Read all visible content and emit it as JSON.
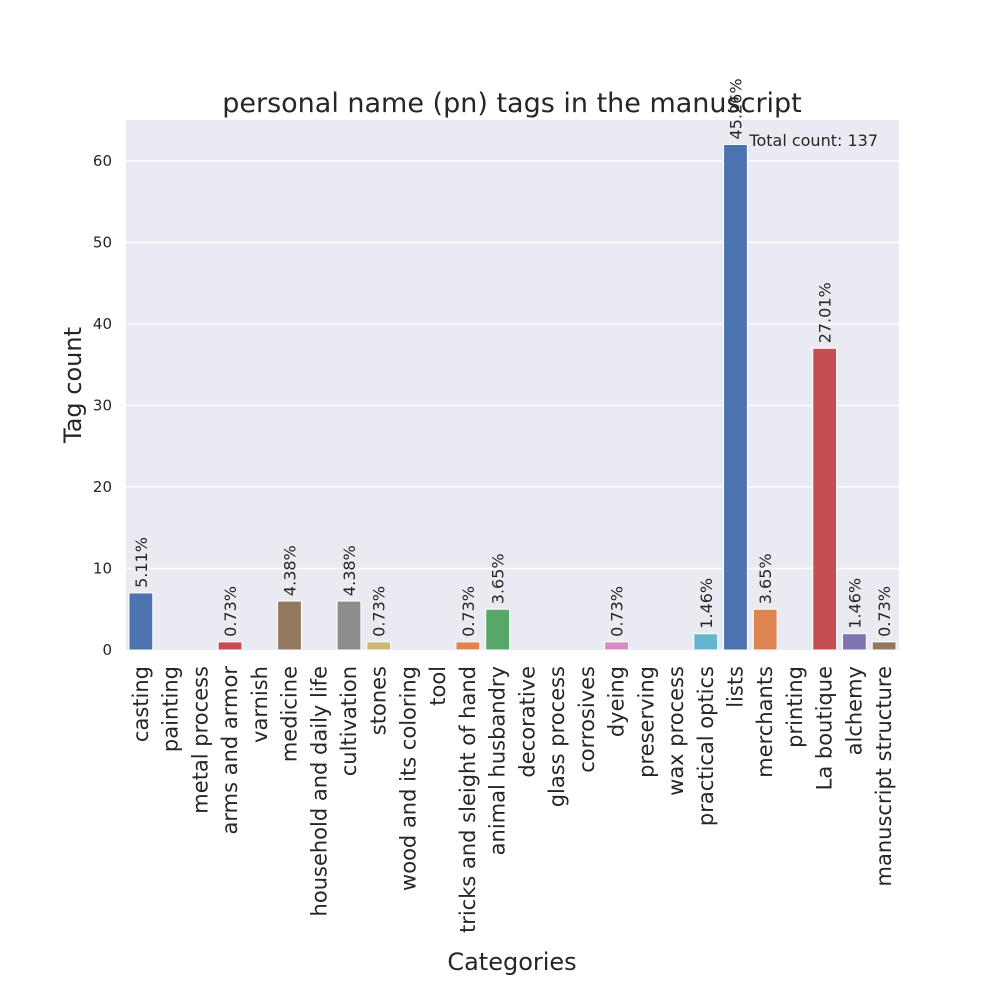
{
  "chart_data": {
    "type": "bar",
    "title": "personal name (pn) tags in the manuscript",
    "xlabel": "Categories",
    "ylabel": "Tag count",
    "ylim": [
      0,
      65
    ],
    "yticks": [
      0,
      10,
      20,
      30,
      40,
      50,
      60
    ],
    "grid": true,
    "annotation": "Total count: 137",
    "categories": [
      "casting",
      "painting",
      "metal process",
      "arms and armor",
      "varnish",
      "medicine",
      "household and daily life",
      "cultivation",
      "stones",
      "wood and its coloring",
      "tool",
      "tricks and sleight of hand",
      "animal husbandry",
      "decorative",
      "glass process",
      "corrosives",
      "dyeing",
      "preserving",
      "wax process",
      "practical optics",
      "lists",
      "merchants",
      "printing",
      "La boutique",
      "alchemy",
      "manuscript structure"
    ],
    "values": [
      7,
      0,
      0,
      1,
      0,
      6,
      0,
      6,
      1,
      0,
      0,
      1,
      5,
      0,
      0,
      0,
      1,
      0,
      0,
      2,
      62,
      5,
      0,
      37,
      2,
      1
    ],
    "labels": [
      "5.11%",
      "",
      "",
      "0.73%",
      "",
      "4.38%",
      "",
      "4.38%",
      "0.73%",
      "",
      "",
      "0.73%",
      "3.65%",
      "",
      "",
      "",
      "0.73%",
      "",
      "",
      "1.46%",
      "45.26%",
      "3.65%",
      "",
      "27.01%",
      "1.46%",
      "0.73%"
    ],
    "colors": [
      "#4c72b0",
      "#dd8452",
      "#55a868",
      "#c44e52",
      "#8172b3",
      "#937860",
      "#da8bc3",
      "#8c8c8c",
      "#ccb974",
      "#64b5cd",
      "#4c72b0",
      "#dd8452",
      "#55a868",
      "#c44e52",
      "#8172b3",
      "#937860",
      "#da8bc3",
      "#8c8c8c",
      "#ccb974",
      "#64b5cd",
      "#4c72b0",
      "#dd8452",
      "#55a868",
      "#c44e52",
      "#8172b3",
      "#937860"
    ],
    "background_color": "#eaeaf2",
    "grid_color": "#ffffff"
  }
}
